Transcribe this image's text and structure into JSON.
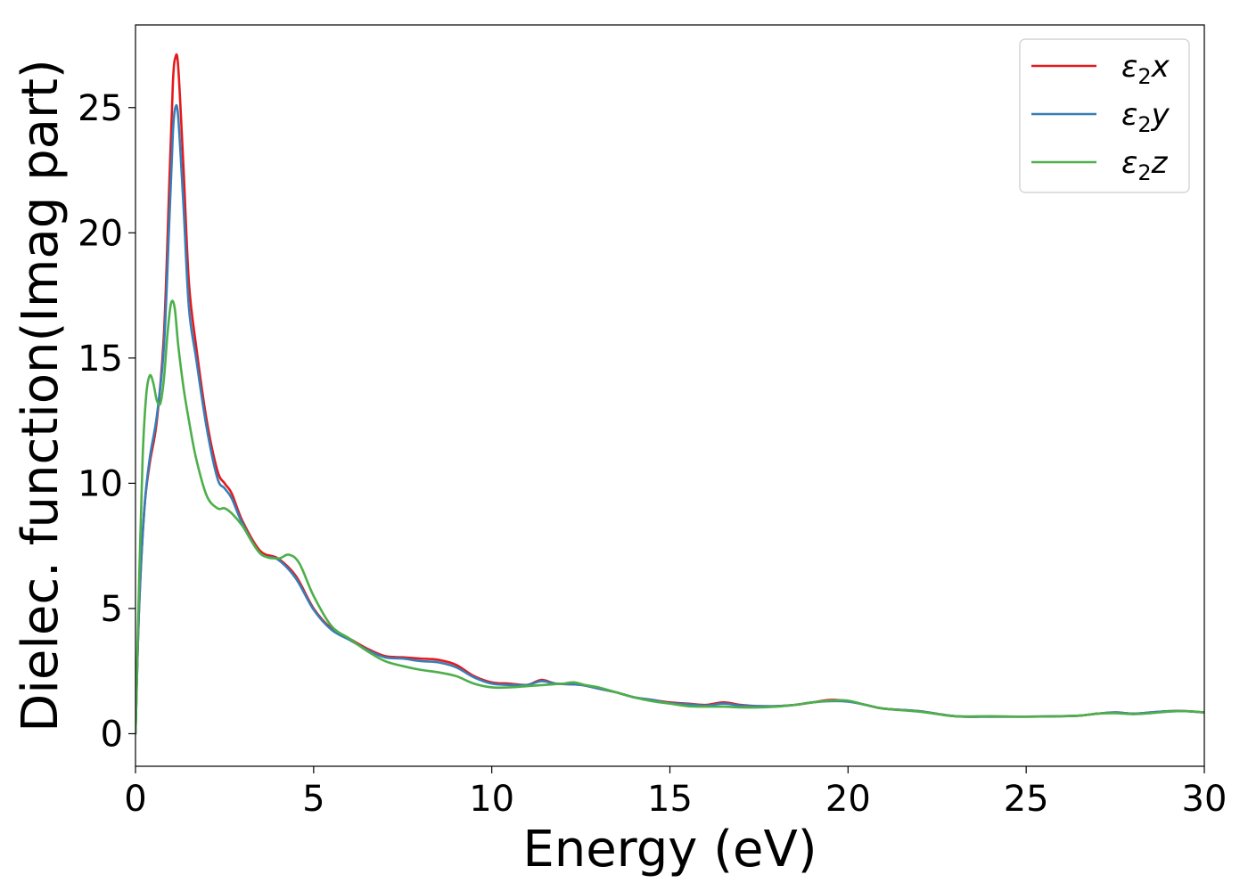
{
  "chart_data": {
    "type": "line",
    "title": "",
    "xlabel": "Energy (eV)",
    "ylabel": "Dielec. function(Imag part)",
    "xlim": [
      0,
      30
    ],
    "ylim": [
      -1.3,
      28.3
    ],
    "xticks": [
      0,
      5,
      10,
      15,
      20,
      25,
      30
    ],
    "yticks": [
      0,
      5,
      10,
      15,
      20,
      25
    ],
    "grid": false,
    "legend_position": "top-right",
    "series": [
      {
        "name": "ε₂x",
        "label_main": "ε",
        "label_sub": "2",
        "label_suffix": "x",
        "color": "#e41a1c",
        "x": [
          0,
          0.1,
          0.25,
          0.4,
          0.6,
          0.8,
          0.95,
          1.05,
          1.12,
          1.2,
          1.35,
          1.5,
          1.7,
          2.0,
          2.3,
          2.5,
          2.7,
          3.0,
          3.5,
          4.0,
          4.5,
          5.0,
          5.5,
          6.0,
          6.5,
          7.0,
          7.5,
          8.0,
          8.5,
          9.0,
          9.5,
          10.0,
          10.5,
          11.0,
          11.4,
          11.8,
          12.5,
          13.0,
          13.5,
          14.0,
          14.5,
          15.0,
          15.5,
          16.0,
          16.5,
          17.0,
          17.5,
          18.0,
          18.5,
          19.0,
          19.5,
          20.0,
          20.5,
          21.0,
          22.0,
          23.0,
          24.0,
          25.0,
          26.0,
          26.5,
          27.0,
          27.5,
          28.0,
          28.5,
          29.0,
          29.5,
          30.0
        ],
        "y": [
          0,
          5.0,
          9.0,
          10.8,
          12.5,
          16.0,
          22.0,
          26.0,
          27.0,
          26.6,
          22.5,
          18.0,
          15.5,
          12.5,
          10.5,
          10.0,
          9.6,
          8.5,
          7.3,
          7.0,
          6.3,
          5.0,
          4.2,
          3.8,
          3.4,
          3.1,
          3.05,
          3.0,
          2.95,
          2.75,
          2.3,
          2.05,
          2.0,
          1.95,
          2.15,
          2.0,
          1.95,
          1.8,
          1.65,
          1.45,
          1.35,
          1.25,
          1.2,
          1.15,
          1.25,
          1.15,
          1.1,
          1.1,
          1.15,
          1.25,
          1.35,
          1.3,
          1.15,
          1.0,
          0.9,
          0.7,
          0.68,
          0.68,
          0.7,
          0.72,
          0.8,
          0.85,
          0.8,
          0.85,
          0.9,
          0.9,
          0.85
        ]
      },
      {
        "name": "ε₂y",
        "label_main": "ε",
        "label_sub": "2",
        "label_suffix": "y",
        "color": "#377eb8",
        "x": [
          0,
          0.1,
          0.25,
          0.4,
          0.6,
          0.8,
          0.95,
          1.05,
          1.12,
          1.2,
          1.35,
          1.5,
          1.7,
          2.0,
          2.3,
          2.5,
          2.7,
          3.0,
          3.5,
          4.0,
          4.5,
          5.0,
          5.5,
          6.0,
          6.5,
          7.0,
          7.5,
          8.0,
          8.5,
          9.0,
          9.5,
          10.0,
          10.5,
          11.0,
          11.4,
          11.8,
          12.5,
          13.0,
          13.5,
          14.0,
          14.5,
          15.0,
          15.5,
          16.0,
          16.5,
          17.0,
          17.5,
          18.0,
          18.5,
          19.0,
          19.5,
          20.0,
          20.5,
          21.0,
          22.0,
          23.0,
          24.0,
          25.0,
          26.0,
          26.5,
          27.0,
          27.5,
          28.0,
          28.5,
          29.0,
          29.5,
          30.0
        ],
        "y": [
          0,
          5.0,
          9.0,
          11.0,
          12.7,
          15.5,
          20.5,
          24.0,
          25.0,
          24.6,
          21.0,
          17.0,
          15.0,
          12.2,
          10.2,
          9.8,
          9.4,
          8.4,
          7.2,
          6.95,
          6.2,
          4.95,
          4.15,
          3.75,
          3.35,
          3.05,
          3.0,
          2.9,
          2.85,
          2.65,
          2.25,
          2.0,
          1.95,
          1.95,
          2.1,
          2.0,
          1.95,
          1.8,
          1.65,
          1.45,
          1.35,
          1.22,
          1.18,
          1.12,
          1.2,
          1.12,
          1.1,
          1.1,
          1.15,
          1.25,
          1.3,
          1.28,
          1.15,
          1.0,
          0.9,
          0.7,
          0.68,
          0.68,
          0.7,
          0.72,
          0.8,
          0.85,
          0.8,
          0.85,
          0.9,
          0.9,
          0.85
        ]
      },
      {
        "name": "ε₂z",
        "label_main": "ε",
        "label_sub": "2",
        "label_suffix": "z",
        "color": "#4daf4a",
        "x": [
          0,
          0.1,
          0.2,
          0.3,
          0.4,
          0.5,
          0.6,
          0.7,
          0.8,
          0.9,
          1.0,
          1.1,
          1.2,
          1.35,
          1.5,
          1.7,
          2.0,
          2.3,
          2.5,
          2.7,
          3.0,
          3.5,
          4.0,
          4.3,
          4.6,
          5.0,
          5.5,
          6.0,
          6.5,
          7.0,
          7.5,
          8.0,
          8.5,
          9.0,
          9.5,
          10.0,
          10.5,
          11.0,
          11.5,
          12.0,
          12.3,
          12.6,
          13.0,
          13.5,
          14.0,
          14.5,
          15.0,
          15.5,
          16.0,
          16.5,
          17.0,
          17.5,
          18.0,
          18.5,
          19.0,
          19.5,
          20.0,
          20.5,
          21.0,
          22.0,
          23.0,
          24.0,
          25.0,
          26.0,
          26.5,
          27.0,
          27.5,
          28.0,
          28.5,
          29.0,
          29.5,
          30.0
        ],
        "y": [
          0,
          6.0,
          11.0,
          13.5,
          14.3,
          14.0,
          13.3,
          13.2,
          14.2,
          16.0,
          17.2,
          17.0,
          15.5,
          13.8,
          12.5,
          11.0,
          9.5,
          9.0,
          9.0,
          8.8,
          8.3,
          7.2,
          7.0,
          7.15,
          6.8,
          5.5,
          4.3,
          3.8,
          3.3,
          2.9,
          2.7,
          2.55,
          2.45,
          2.3,
          2.0,
          1.85,
          1.85,
          1.9,
          1.95,
          2.0,
          2.05,
          1.95,
          1.85,
          1.65,
          1.45,
          1.3,
          1.2,
          1.1,
          1.08,
          1.08,
          1.05,
          1.05,
          1.08,
          1.15,
          1.25,
          1.32,
          1.32,
          1.15,
          1.0,
          0.88,
          0.7,
          0.7,
          0.68,
          0.7,
          0.72,
          0.8,
          0.82,
          0.78,
          0.82,
          0.88,
          0.9,
          0.85
        ]
      }
    ]
  }
}
